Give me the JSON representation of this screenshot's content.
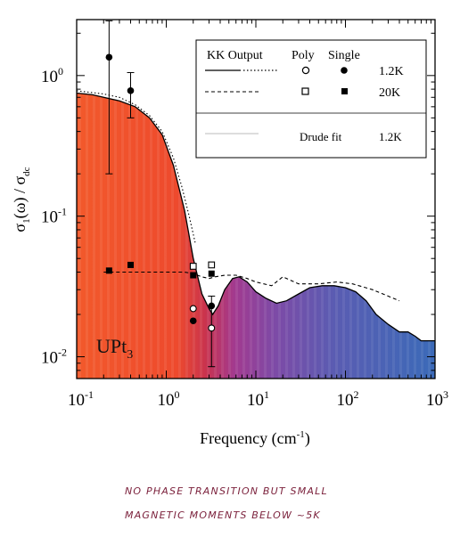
{
  "chart_data": {
    "type": "line",
    "xlabel": "Frequency (cm-1)",
    "ylabel": "σ1(ω) / σdc",
    "x_scale": "log",
    "y_scale": "log",
    "xlim": [
      0.1,
      1000
    ],
    "ylim": [
      0.007,
      2.5
    ],
    "x_ticks": [
      {
        "value": 0.1,
        "label": "10",
        "exp": "-1"
      },
      {
        "value": 1,
        "label": "10",
        "exp": "0"
      },
      {
        "value": 10,
        "label": "10",
        "exp": "1"
      },
      {
        "value": 100,
        "label": "10",
        "exp": "2"
      },
      {
        "value": 1000,
        "label": "10",
        "exp": "3"
      }
    ],
    "y_ticks": [
      {
        "value": 0.01,
        "label": "10",
        "exp": "-2"
      },
      {
        "value": 0.1,
        "label": "10",
        "exp": "-1"
      },
      {
        "value": 1,
        "label": "10",
        "exp": "0"
      }
    ],
    "annotation": "UPt3",
    "grid": false,
    "legend_position": "top-right",
    "legend": {
      "header_kk": "KK Output",
      "header_poly": "Poly",
      "header_single": "Single",
      "row1_temp": "1.2K",
      "row2_temp": "20K",
      "drude_label": "Drude fit",
      "drude_temp": "1.2K"
    },
    "series": [
      {
        "name": "KK Output 1.2K",
        "style": "solid",
        "x": [
          0.1,
          0.15,
          0.2,
          0.3,
          0.45,
          0.65,
          0.9,
          1.2,
          1.6,
          2.0,
          2.5,
          3.0,
          3.3,
          3.8,
          4.5,
          5.5,
          6.5,
          8,
          10,
          13,
          17,
          22,
          30,
          40,
          55,
          75,
          100,
          130,
          170,
          220,
          300,
          400,
          500,
          600,
          700,
          800,
          1000
        ],
        "y": [
          0.75,
          0.73,
          0.7,
          0.66,
          0.6,
          0.5,
          0.38,
          0.23,
          0.11,
          0.05,
          0.028,
          0.022,
          0.02,
          0.023,
          0.03,
          0.036,
          0.037,
          0.034,
          0.029,
          0.026,
          0.024,
          0.025,
          0.028,
          0.031,
          0.032,
          0.032,
          0.031,
          0.029,
          0.025,
          0.02,
          0.017,
          0.015,
          0.015,
          0.014,
          0.013,
          0.013,
          0.013
        ]
      },
      {
        "name": "Drude fit 1.2K",
        "style": "dotted",
        "x": [
          0.1,
          0.2,
          0.3,
          0.45,
          0.65,
          0.9,
          1.2,
          1.5,
          1.8,
          2.1
        ],
        "y": [
          0.78,
          0.74,
          0.7,
          0.62,
          0.52,
          0.4,
          0.26,
          0.16,
          0.1,
          0.065
        ]
      },
      {
        "name": "KK Output 20K",
        "style": "dashed",
        "x": [
          0.2,
          0.3,
          0.5,
          0.8,
          1.2,
          1.6,
          2.0,
          2.5,
          3.0,
          3.5,
          4.5,
          6,
          8,
          10,
          15,
          20,
          30,
          50,
          80,
          120,
          200,
          300,
          400
        ],
        "y": [
          0.04,
          0.04,
          0.04,
          0.04,
          0.04,
          0.04,
          0.039,
          0.037,
          0.036,
          0.037,
          0.038,
          0.038,
          0.036,
          0.034,
          0.032,
          0.037,
          0.033,
          0.033,
          0.034,
          0.033,
          0.03,
          0.027,
          0.025
        ]
      }
    ],
    "points": [
      {
        "name": "Single 1.2K",
        "marker": "filled-circle",
        "x": 0.23,
        "y": 1.35,
        "err_low": 0.2,
        "err_high": 2.45
      },
      {
        "name": "Single 1.2K",
        "marker": "filled-circle",
        "x": 0.4,
        "y": 0.78,
        "err_low": 0.5,
        "err_high": 1.05
      },
      {
        "name": "Single 1.2K",
        "marker": "filled-circle",
        "x": 2.0,
        "y": 0.018
      },
      {
        "name": "Single 1.2K",
        "marker": "filled-circle",
        "x": 3.2,
        "y": 0.023
      },
      {
        "name": "Poly 1.2K",
        "marker": "open-circle",
        "x": 2.0,
        "y": 0.022
      },
      {
        "name": "Poly 1.2K",
        "marker": "open-circle",
        "x": 3.2,
        "y": 0.016,
        "err_low": 0.0085,
        "err_high": 0.027
      },
      {
        "name": "Single 20K",
        "marker": "filled-square",
        "x": 0.23,
        "y": 0.041
      },
      {
        "name": "Single 20K",
        "marker": "filled-square",
        "x": 0.4,
        "y": 0.045
      },
      {
        "name": "Single 20K",
        "marker": "filled-square",
        "x": 2.0,
        "y": 0.038
      },
      {
        "name": "Single 20K",
        "marker": "filled-square",
        "x": 3.2,
        "y": 0.039
      },
      {
        "name": "Poly 20K",
        "marker": "open-square",
        "x": 2.0,
        "y": 0.044
      },
      {
        "name": "Poly 20K",
        "marker": "open-square",
        "x": 3.2,
        "y": 0.045
      }
    ]
  },
  "handwritten_note": {
    "line1": "NO PHASE TRANSITION BUT SMALL",
    "line2": "MAGNETIC MOMENTS BELOW ~5K"
  },
  "colors": {
    "fill_low_freq": "#f0582a",
    "fill_mid": "#b03a8e",
    "fill_high_freq": "#3e67b8"
  }
}
